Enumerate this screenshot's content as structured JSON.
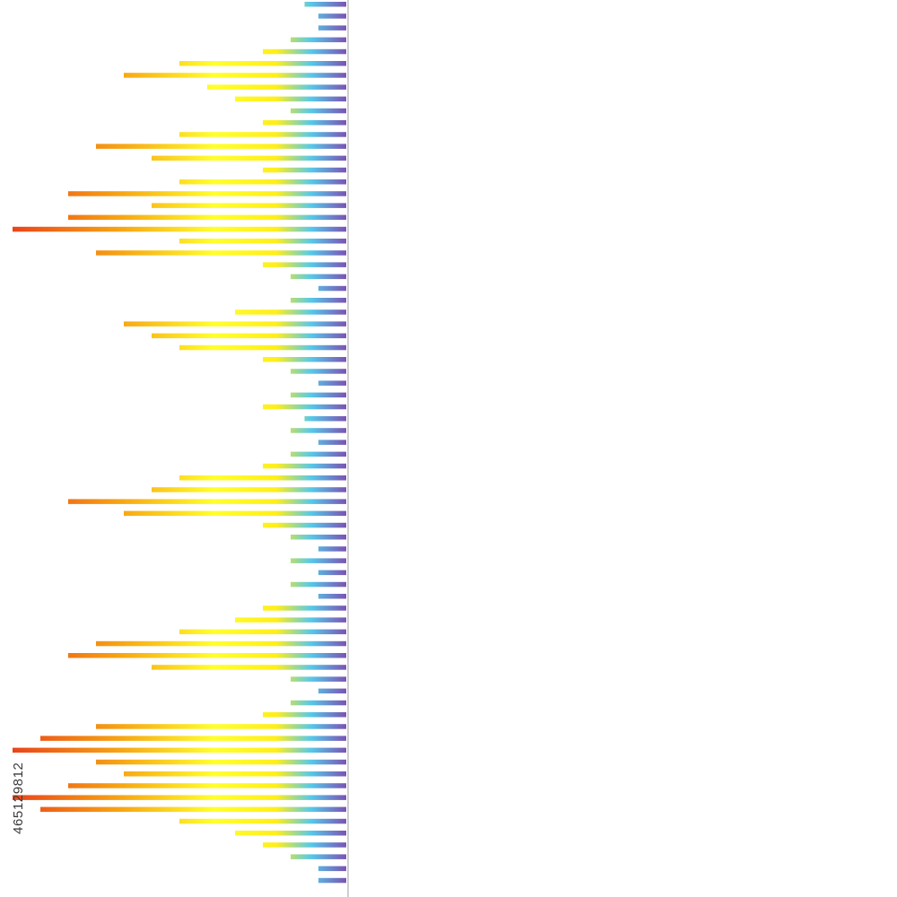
{
  "stock_id": "465129812",
  "colors": {
    "background": "#ffffff",
    "edge_line": "#cfcfcf",
    "gradient": [
      "#e8391a",
      "#f29a14",
      "#f7e11a",
      "#ffff33",
      "#4fc8e8",
      "#7c5ab8"
    ]
  },
  "bars": [
    3,
    2,
    2,
    4,
    6,
    12,
    16,
    10,
    8,
    4,
    6,
    12,
    18,
    14,
    6,
    12,
    20,
    14,
    20,
    24,
    12,
    18,
    6,
    4,
    2,
    4,
    8,
    16,
    14,
    12,
    6,
    4,
    2,
    4,
    6,
    3,
    4,
    2,
    4,
    6,
    12,
    14,
    20,
    16,
    6,
    4,
    2,
    4,
    2,
    4,
    2,
    6,
    8,
    12,
    18,
    20,
    14,
    4,
    2,
    4,
    6,
    18,
    22,
    24,
    18,
    16,
    20,
    24,
    22,
    12,
    8,
    6,
    4,
    2,
    2
  ]
}
